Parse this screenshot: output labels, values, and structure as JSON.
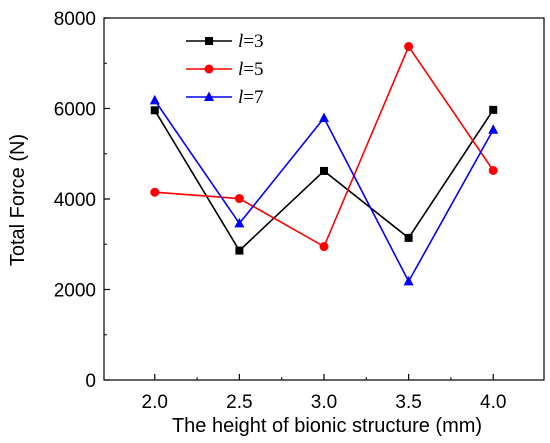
{
  "chart_data": {
    "type": "line",
    "xlabel": "The height of bionic structure (mm)",
    "ylabel": "Total Force (N)",
    "x": [
      2.0,
      2.5,
      3.0,
      3.5,
      4.0
    ],
    "x_tick_labels": [
      "2.0",
      "2.5",
      "3.0",
      "3.5",
      "4.0"
    ],
    "xlim": [
      1.7,
      4.3
    ],
    "ylim": [
      0,
      8000
    ],
    "y_ticks": [
      0,
      2000,
      4000,
      6000,
      8000
    ],
    "y_tick_labels": [
      "0",
      "2000",
      "4000",
      "6000",
      "8000"
    ],
    "grid": false,
    "legend_position": "top-center",
    "series": [
      {
        "name": "l=3",
        "name_var": "l",
        "name_rest": "=3",
        "color": "#000000",
        "marker": "square",
        "values": [
          5960,
          2860,
          4620,
          3140,
          5970
        ]
      },
      {
        "name": "l=5",
        "name_var": "l",
        "name_rest": "=5",
        "color": "#ff0000",
        "marker": "circle",
        "values": [
          4150,
          4010,
          2950,
          7370,
          4630
        ]
      },
      {
        "name": "l=7",
        "name_var": "l",
        "name_rest": "=7",
        "color": "#0000ff",
        "marker": "triangle",
        "values": [
          6180,
          3460,
          5790,
          2180,
          5530
        ]
      }
    ]
  }
}
